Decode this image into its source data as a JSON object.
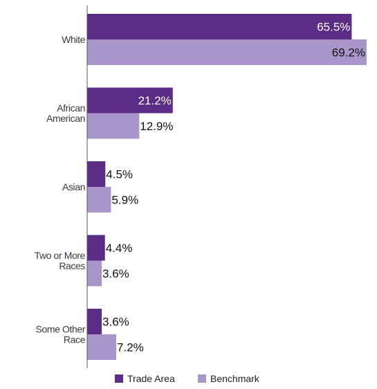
{
  "chart_data": {
    "type": "bar",
    "orientation": "horizontal",
    "categories": [
      [
        "White"
      ],
      [
        "African",
        "American"
      ],
      [
        "Asian"
      ],
      [
        "Two or More",
        "Races"
      ],
      [
        "Some Other",
        "Race"
      ]
    ],
    "series": [
      {
        "name": "Trade Area",
        "color": "#5b2d87",
        "values": [
          65.5,
          21.2,
          4.5,
          4.4,
          3.6
        ],
        "value_labels": [
          "65.5%",
          "21.2%",
          "4.5%",
          "4.4%",
          "3.6%"
        ]
      },
      {
        "name": "Benchmark",
        "color": "#a995c9",
        "values": [
          69.2,
          12.9,
          5.9,
          3.6,
          7.2
        ],
        "value_labels": [
          "69.2%",
          "12.9%",
          "5.9%",
          "3.6%",
          "7.2%"
        ]
      }
    ],
    "xlim": [
      0,
      69.2
    ],
    "grid": false,
    "legend_position": "bottom-center",
    "title": "",
    "xlabel": "",
    "ylabel": ""
  }
}
